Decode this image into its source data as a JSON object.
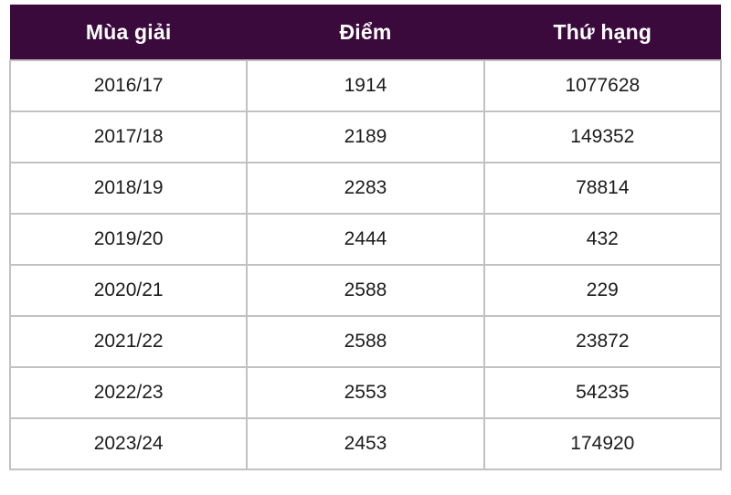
{
  "colors": {
    "header_background": "#3a0a3c",
    "header_text": "#ffffff",
    "cell_text": "#1c1c1c",
    "grid_border": "#c2c2c2",
    "row_background": "#ffffff"
  },
  "chart_data": {
    "type": "table",
    "title": "",
    "columns": [
      "Mùa giải",
      "Điểm",
      "Thứ hạng"
    ],
    "rows": [
      [
        "2016/17",
        "1914",
        "1077628"
      ],
      [
        "2017/18",
        "2189",
        "149352"
      ],
      [
        "2018/19",
        "2283",
        "78814"
      ],
      [
        "2019/20",
        "2444",
        "432"
      ],
      [
        "2020/21",
        "2588",
        "229"
      ],
      [
        "2021/22",
        "2588",
        "23872"
      ],
      [
        "2022/23",
        "2553",
        "54235"
      ],
      [
        "2023/24",
        "2453",
        "174920"
      ]
    ]
  }
}
